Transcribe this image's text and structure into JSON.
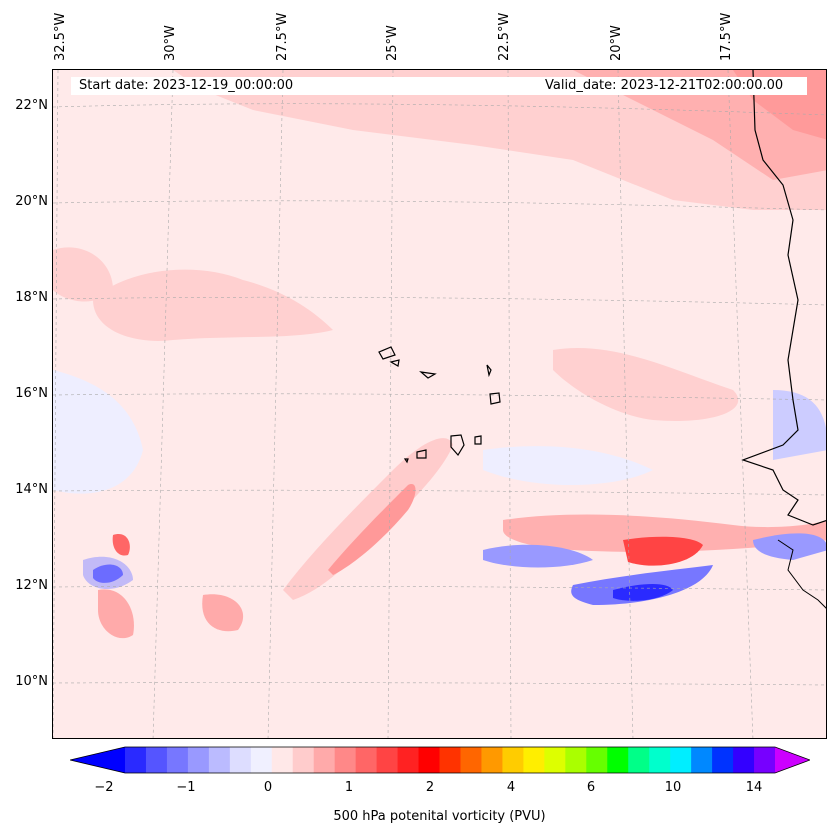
{
  "header": {
    "start_label": "Start date: 2023-12-19_00:00:00",
    "valid_label": "Valid_date: 2023-12-21T02:00:00.00"
  },
  "map": {
    "lat_labels": [
      "22°N",
      "20°N",
      "18°N",
      "16°N",
      "14°N",
      "12°N",
      "10°N"
    ],
    "lon_labels": [
      "32.5°W",
      "30°W",
      "27.5°W",
      "25°W",
      "22.5°W",
      "20°W",
      "17.5°W"
    ],
    "features": [
      "Cape Verde islands",
      "West African coastline (Senegal, Mauritania)"
    ]
  },
  "colorbar": {
    "label": "500 hPa potenital vorticity (PVU)",
    "ticks": [
      "−2",
      "−1",
      "0",
      "1",
      "2",
      "4",
      "6",
      "10",
      "14"
    ],
    "colors": [
      "#0000ff",
      "#2a2aff",
      "#5555ff",
      "#7777ff",
      "#9999ff",
      "#bbbbff",
      "#ddddff",
      "#f0f0ff",
      "#ffe8e8",
      "#ffcccc",
      "#ffaaaa",
      "#ff8888",
      "#ff6666",
      "#ff4444",
      "#ff2222",
      "#ff0000",
      "#ff3300",
      "#ff6600",
      "#ff9900",
      "#ffcc00",
      "#ffee00",
      "#ddff00",
      "#aaff00",
      "#66ff00",
      "#00ff00",
      "#00ff88",
      "#00ffcc",
      "#00eeff",
      "#0088ff",
      "#0033ff",
      "#3300ff",
      "#7700ff",
      "#cc00ff"
    ]
  }
}
